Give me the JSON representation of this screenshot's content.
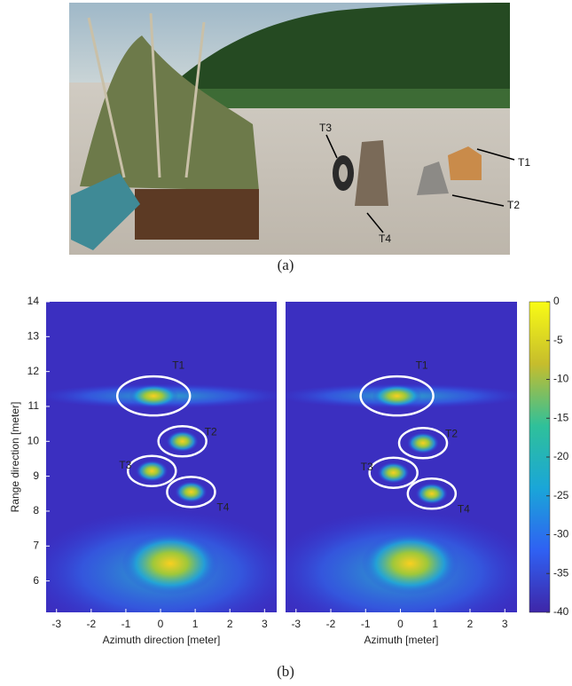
{
  "photo": {
    "labels": [
      "T3",
      "T1",
      "T2",
      "T4"
    ]
  },
  "captions": [
    "(a)",
    "(b)"
  ],
  "chart_data": [
    {
      "type": "heatmap",
      "xlabel": "Azimuth direction [meter]",
      "ylabel": "Range direction [meter]",
      "xlim": [
        -3.3,
        3.35
      ],
      "ylim": [
        5.1,
        14
      ],
      "xticks": [
        -3,
        -2,
        -1,
        0,
        1,
        2,
        3
      ],
      "yticks": [
        6,
        7,
        8,
        9,
        10,
        11,
        12,
        13,
        14
      ],
      "annotations": [
        {
          "text": "T1",
          "x": -0.2,
          "y": 11.3
        },
        {
          "text": "T2",
          "x": 0.63,
          "y": 10.0
        },
        {
          "text": "T3",
          "x": -0.25,
          "y": 9.15
        },
        {
          "text": "T4",
          "x": 0.88,
          "y": 8.55
        }
      ]
    },
    {
      "type": "heatmap",
      "xlabel": "Azimuth [meter]",
      "xlim": [
        -3.3,
        3.35
      ],
      "ylim": [
        5.1,
        14
      ],
      "xticks": [
        -3,
        -2,
        -1,
        0,
        1,
        2,
        3
      ],
      "annotations": [
        {
          "text": "T1",
          "x": -0.1,
          "y": 11.3
        },
        {
          "text": "T2",
          "x": 0.65,
          "y": 9.95
        },
        {
          "text": "T3",
          "x": -0.2,
          "y": 9.1
        },
        {
          "text": "T4",
          "x": 0.9,
          "y": 8.5
        }
      ],
      "colorbar": {
        "lim": [
          -40,
          0
        ],
        "ticks": [
          0,
          -5,
          -10,
          -15,
          -20,
          -25,
          -30,
          -35,
          -40
        ]
      }
    }
  ]
}
